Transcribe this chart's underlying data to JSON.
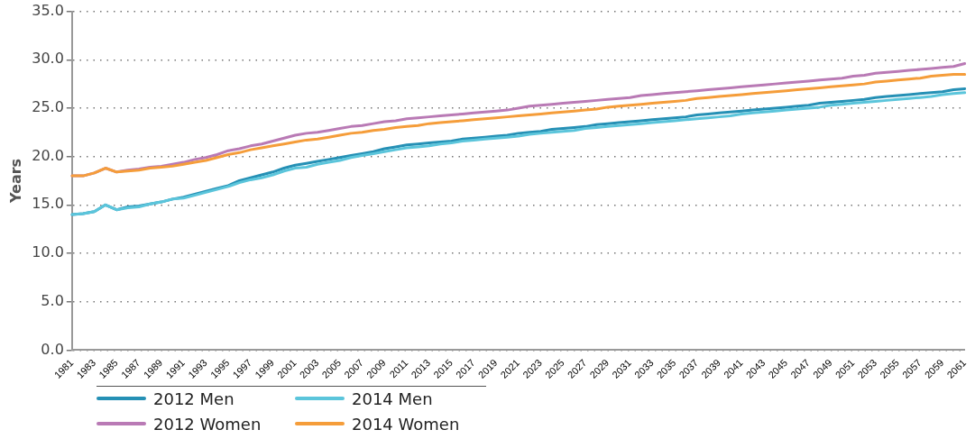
{
  "chart_data": {
    "type": "line",
    "ylabel": "Years",
    "categories": [
      "1981",
      null,
      "1983",
      null,
      "1985",
      null,
      "1987",
      null,
      "1989",
      null,
      "1991",
      null,
      "1993",
      null,
      "1995",
      null,
      "1997",
      null,
      "1999",
      null,
      "2001",
      null,
      "2003",
      null,
      "2005",
      null,
      "2007",
      null,
      "2009",
      null,
      "2011",
      null,
      "2013",
      null,
      "2015",
      null,
      "2017",
      null,
      "2019",
      null,
      "2021",
      null,
      "2023",
      null,
      "2025",
      null,
      "2027",
      null,
      "2029",
      null,
      "2031",
      null,
      "2033",
      null,
      "2035",
      null,
      "2037",
      null,
      "2039",
      null,
      "2041",
      null,
      "2043",
      null,
      "2045",
      null,
      "2047",
      null,
      "2049",
      null,
      "2051",
      null,
      "2053",
      null,
      "2055",
      null,
      "2057",
      null,
      "2059",
      null,
      "2061"
    ],
    "series": [
      {
        "name": "2012 Men",
        "color": "#2590b5",
        "values": [
          14.0,
          14.1,
          14.3,
          15.0,
          14.5,
          14.8,
          14.9,
          15.1,
          15.3,
          15.6,
          15.8,
          16.1,
          16.4,
          16.7,
          17.0,
          17.5,
          17.8,
          18.1,
          18.4,
          18.8,
          19.1,
          19.3,
          19.5,
          19.7,
          19.9,
          20.1,
          20.3,
          20.5,
          20.8,
          21.0,
          21.2,
          21.3,
          21.4,
          21.5,
          21.6,
          21.8,
          21.9,
          22.0,
          22.1,
          22.2,
          22.4,
          22.5,
          22.6,
          22.8,
          22.9,
          23.0,
          23.1,
          23.3,
          23.4,
          23.5,
          23.6,
          23.7,
          23.8,
          23.9,
          24.0,
          24.1,
          24.3,
          24.4,
          24.5,
          24.6,
          24.7,
          24.8,
          24.9,
          25.0,
          25.1,
          25.2,
          25.3,
          25.5,
          25.6,
          25.7,
          25.8,
          25.9,
          26.1,
          26.2,
          26.3,
          26.4,
          26.5,
          26.6,
          26.7,
          26.9,
          27.0
        ]
      },
      {
        "name": "2014 Men",
        "color": "#5bc5db",
        "values": [
          14.0,
          14.1,
          14.3,
          15.0,
          14.5,
          14.7,
          14.8,
          15.1,
          15.3,
          15.6,
          15.7,
          16.0,
          16.3,
          16.6,
          16.9,
          17.3,
          17.6,
          17.8,
          18.1,
          18.5,
          18.8,
          18.9,
          19.2,
          19.4,
          19.6,
          19.9,
          20.1,
          20.3,
          20.5,
          20.7,
          20.9,
          21.0,
          21.1,
          21.3,
          21.4,
          21.6,
          21.7,
          21.8,
          21.9,
          22.0,
          22.1,
          22.3,
          22.4,
          22.5,
          22.6,
          22.7,
          22.9,
          23.0,
          23.1,
          23.2,
          23.3,
          23.4,
          23.5,
          23.6,
          23.7,
          23.8,
          23.9,
          24.0,
          24.1,
          24.2,
          24.4,
          24.5,
          24.6,
          24.7,
          24.8,
          24.9,
          25.0,
          25.1,
          25.3,
          25.4,
          25.5,
          25.6,
          25.7,
          25.8,
          25.9,
          26.0,
          26.1,
          26.2,
          26.4,
          26.5,
          26.6
        ]
      },
      {
        "name": "2012 Women",
        "color": "#b97ab5",
        "values": [
          18.0,
          18.0,
          18.3,
          18.8,
          18.4,
          18.6,
          18.7,
          18.9,
          19.0,
          19.2,
          19.4,
          19.7,
          19.9,
          20.2,
          20.6,
          20.8,
          21.1,
          21.3,
          21.6,
          21.9,
          22.2,
          22.4,
          22.5,
          22.7,
          22.9,
          23.1,
          23.2,
          23.4,
          23.6,
          23.7,
          23.9,
          24.0,
          24.1,
          24.2,
          24.3,
          24.4,
          24.5,
          24.6,
          24.7,
          24.8,
          25.0,
          25.2,
          25.3,
          25.4,
          25.5,
          25.6,
          25.7,
          25.8,
          25.9,
          26.0,
          26.1,
          26.3,
          26.4,
          26.5,
          26.6,
          26.7,
          26.8,
          26.9,
          27.0,
          27.1,
          27.2,
          27.3,
          27.4,
          27.5,
          27.6,
          27.7,
          27.8,
          27.9,
          28.0,
          28.1,
          28.3,
          28.4,
          28.6,
          28.7,
          28.8,
          28.9,
          29.0,
          29.1,
          29.2,
          29.3,
          29.6
        ]
      },
      {
        "name": "2014 Women",
        "color": "#f59d3a",
        "values": [
          18.0,
          18.0,
          18.3,
          18.8,
          18.4,
          18.5,
          18.6,
          18.8,
          18.9,
          19.0,
          19.2,
          19.4,
          19.6,
          19.9,
          20.2,
          20.4,
          20.7,
          20.9,
          21.1,
          21.3,
          21.5,
          21.7,
          21.8,
          22.0,
          22.2,
          22.4,
          22.5,
          22.7,
          22.8,
          23.0,
          23.1,
          23.2,
          23.4,
          23.5,
          23.6,
          23.7,
          23.8,
          23.9,
          24.0,
          24.1,
          24.2,
          24.3,
          24.4,
          24.5,
          24.6,
          24.7,
          24.8,
          24.9,
          25.1,
          25.2,
          25.3,
          25.4,
          25.5,
          25.6,
          25.7,
          25.8,
          26.0,
          26.1,
          26.2,
          26.3,
          26.4,
          26.5,
          26.6,
          26.7,
          26.8,
          26.9,
          27.0,
          27.1,
          27.2,
          27.3,
          27.4,
          27.5,
          27.7,
          27.8,
          27.9,
          28.0,
          28.1,
          28.3,
          28.4,
          28.5,
          28.5
        ]
      }
    ],
    "ylim": [
      0,
      35
    ],
    "yticks": [
      {
        "value": 0,
        "label": "0.0"
      },
      {
        "value": 5,
        "label": "5.0"
      },
      {
        "value": 10,
        "label": "10.0"
      },
      {
        "value": 15,
        "label": "15.0"
      },
      {
        "value": 20,
        "label": "20.0"
      },
      {
        "value": 25,
        "label": "25.0"
      },
      {
        "value": 30,
        "label": "30.0"
      },
      {
        "value": 35,
        "label": "35.0"
      }
    ],
    "grid": "y",
    "legend": "bottom",
    "marker": "none",
    "line_style": "solid"
  }
}
